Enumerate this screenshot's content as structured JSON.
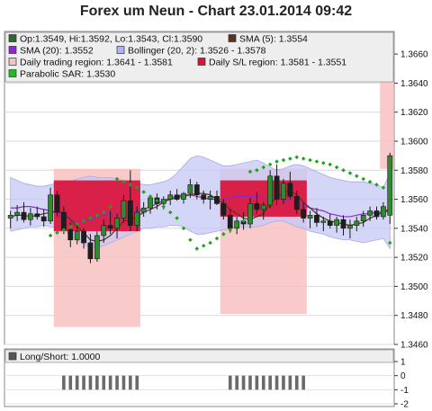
{
  "title": "Forex um Neun - Chart 23.01.2014 09:42",
  "legend_main": [
    {
      "label": "Op:1.3549, Hi:1.3592, Lo:1.3543, Cl:1.3590",
      "color": "#2a6a2a"
    },
    {
      "label": "SMA (5): 1.3554",
      "color": "#5a3418"
    },
    {
      "label": "SMA (20): 1.3552",
      "color": "#8a2ac8"
    },
    {
      "label": "Bollinger (20, 2): 1.3526 - 1.3578",
      "color": "#b0b4f0"
    },
    {
      "label": "Daily trading region: 1.3641 - 1.3581",
      "color": "#f2c6c6"
    },
    {
      "label": "Daily S/L region: 1.3581 - 1.3551",
      "color": "#dd1133"
    },
    {
      "label": "Parabolic SAR: 1.3530",
      "color": "#22bb22"
    }
  ],
  "legend_lower": [
    {
      "label": "Long/Short: 1.0000",
      "color": "#555555"
    }
  ],
  "chart_data": [
    {
      "type": "candlestick",
      "title": "Forex um Neun - Chart 23.01.2014 09:42",
      "ylim": [
        1.346,
        1.367
      ],
      "y_ticks": [
        "1.3660",
        "1.3640",
        "1.3620",
        "1.3600",
        "1.3580",
        "1.3560",
        "1.3540",
        "1.3520",
        "1.3500",
        "1.3480",
        "1.3460"
      ],
      "grid": true,
      "candles": [
        {
          "o": 1.3547,
          "h": 1.3552,
          "l": 1.354,
          "c": 1.3549
        },
        {
          "o": 1.3549,
          "h": 1.3556,
          "l": 1.3545,
          "c": 1.3551
        },
        {
          "o": 1.3551,
          "h": 1.3558,
          "l": 1.3544,
          "c": 1.3546
        },
        {
          "o": 1.3546,
          "h": 1.3554,
          "l": 1.3542,
          "c": 1.355
        },
        {
          "o": 1.355,
          "h": 1.3555,
          "l": 1.3546,
          "c": 1.3548
        },
        {
          "o": 1.3548,
          "h": 1.3553,
          "l": 1.3541,
          "c": 1.3545
        },
        {
          "o": 1.3545,
          "h": 1.3568,
          "l": 1.3543,
          "c": 1.3563
        },
        {
          "o": 1.3563,
          "h": 1.3566,
          "l": 1.3548,
          "c": 1.3551
        },
        {
          "o": 1.3551,
          "h": 1.3555,
          "l": 1.3536,
          "c": 1.3539
        },
        {
          "o": 1.3539,
          "h": 1.3544,
          "l": 1.3527,
          "c": 1.3532
        },
        {
          "o": 1.3532,
          "h": 1.3542,
          "l": 1.3529,
          "c": 1.3538
        },
        {
          "o": 1.3538,
          "h": 1.354,
          "l": 1.3526,
          "c": 1.353
        },
        {
          "o": 1.353,
          "h": 1.3536,
          "l": 1.3516,
          "c": 1.3519
        },
        {
          "o": 1.3519,
          "h": 1.3538,
          "l": 1.3517,
          "c": 1.3535
        },
        {
          "o": 1.3535,
          "h": 1.3546,
          "l": 1.353,
          "c": 1.3542
        },
        {
          "o": 1.3542,
          "h": 1.3552,
          "l": 1.3536,
          "c": 1.354
        },
        {
          "o": 1.354,
          "h": 1.355,
          "l": 1.3533,
          "c": 1.3547
        },
        {
          "o": 1.3547,
          "h": 1.3563,
          "l": 1.3544,
          "c": 1.3559
        },
        {
          "o": 1.3559,
          "h": 1.358,
          "l": 1.3538,
          "c": 1.3542
        },
        {
          "o": 1.3542,
          "h": 1.3555,
          "l": 1.3538,
          "c": 1.3551
        },
        {
          "o": 1.3551,
          "h": 1.3558,
          "l": 1.3548,
          "c": 1.3554
        },
        {
          "o": 1.3554,
          "h": 1.3563,
          "l": 1.355,
          "c": 1.3561
        },
        {
          "o": 1.3561,
          "h": 1.3564,
          "l": 1.3553,
          "c": 1.3557
        },
        {
          "o": 1.3557,
          "h": 1.3562,
          "l": 1.3553,
          "c": 1.356
        },
        {
          "o": 1.356,
          "h": 1.3566,
          "l": 1.3556,
          "c": 1.3563
        },
        {
          "o": 1.3563,
          "h": 1.3567,
          "l": 1.3559,
          "c": 1.356
        },
        {
          "o": 1.356,
          "h": 1.3565,
          "l": 1.3557,
          "c": 1.3564
        },
        {
          "o": 1.3564,
          "h": 1.3574,
          "l": 1.3561,
          "c": 1.357
        },
        {
          "o": 1.357,
          "h": 1.3572,
          "l": 1.356,
          "c": 1.3563
        },
        {
          "o": 1.3563,
          "h": 1.3566,
          "l": 1.3557,
          "c": 1.356
        },
        {
          "o": 1.356,
          "h": 1.3566,
          "l": 1.3553,
          "c": 1.3562
        },
        {
          "o": 1.3562,
          "h": 1.3566,
          "l": 1.3556,
          "c": 1.3557
        },
        {
          "o": 1.3557,
          "h": 1.356,
          "l": 1.3546,
          "c": 1.3549
        },
        {
          "o": 1.3549,
          "h": 1.3553,
          "l": 1.3537,
          "c": 1.354
        },
        {
          "o": 1.354,
          "h": 1.3548,
          "l": 1.3536,
          "c": 1.3545
        },
        {
          "o": 1.3545,
          "h": 1.3551,
          "l": 1.3539,
          "c": 1.3543
        },
        {
          "o": 1.3543,
          "h": 1.3561,
          "l": 1.354,
          "c": 1.3557
        },
        {
          "o": 1.3557,
          "h": 1.3565,
          "l": 1.355,
          "c": 1.3553
        },
        {
          "o": 1.3553,
          "h": 1.3558,
          "l": 1.3546,
          "c": 1.3556
        },
        {
          "o": 1.3556,
          "h": 1.358,
          "l": 1.3554,
          "c": 1.3576
        },
        {
          "o": 1.3576,
          "h": 1.3584,
          "l": 1.3556,
          "c": 1.356
        },
        {
          "o": 1.356,
          "h": 1.3574,
          "l": 1.3557,
          "c": 1.3571
        },
        {
          "o": 1.3571,
          "h": 1.3579,
          "l": 1.356,
          "c": 1.3562
        },
        {
          "o": 1.3562,
          "h": 1.3566,
          "l": 1.355,
          "c": 1.3553
        },
        {
          "o": 1.3553,
          "h": 1.3558,
          "l": 1.3544,
          "c": 1.3547
        },
        {
          "o": 1.3547,
          "h": 1.3552,
          "l": 1.354,
          "c": 1.3549
        },
        {
          "o": 1.3549,
          "h": 1.3554,
          "l": 1.3541,
          "c": 1.3544
        },
        {
          "o": 1.3544,
          "h": 1.3548,
          "l": 1.3538,
          "c": 1.3545
        },
        {
          "o": 1.3545,
          "h": 1.355,
          "l": 1.354,
          "c": 1.3542
        },
        {
          "o": 1.3542,
          "h": 1.3548,
          "l": 1.3537,
          "c": 1.3546
        },
        {
          "o": 1.3546,
          "h": 1.3549,
          "l": 1.3535,
          "c": 1.354
        },
        {
          "o": 1.354,
          "h": 1.3546,
          "l": 1.3533,
          "c": 1.3542
        },
        {
          "o": 1.3542,
          "h": 1.3548,
          "l": 1.3538,
          "c": 1.3545
        },
        {
          "o": 1.3545,
          "h": 1.3552,
          "l": 1.3541,
          "c": 1.3549
        },
        {
          "o": 1.3549,
          "h": 1.3555,
          "l": 1.3545,
          "c": 1.3552
        },
        {
          "o": 1.3552,
          "h": 1.3555,
          "l": 1.3546,
          "c": 1.3548
        },
        {
          "o": 1.3548,
          "h": 1.3558,
          "l": 1.3546,
          "c": 1.3555
        },
        {
          "o": 1.3549,
          "h": 1.3592,
          "l": 1.3543,
          "c": 1.359
        }
      ],
      "bollinger_upper": [
        1.3575,
        1.3573,
        1.3571,
        1.357,
        1.3569,
        1.3569,
        1.357,
        1.3571,
        1.3571,
        1.3572,
        1.3574,
        1.3575,
        1.3576,
        1.3575,
        1.3575,
        1.3575,
        1.3574,
        1.3573,
        1.3572,
        1.3571,
        1.357,
        1.357,
        1.3571,
        1.3572,
        1.3574,
        1.3578,
        1.3583,
        1.3588,
        1.359,
        1.3589,
        1.3587,
        1.3585,
        1.3583,
        1.3583,
        1.3584,
        1.3585,
        1.3586,
        1.3587,
        1.3585,
        1.3582,
        1.358,
        1.3581,
        1.3583,
        1.3584,
        1.3583,
        1.3581,
        1.3579,
        1.3577,
        1.3575,
        1.3574,
        1.3573,
        1.3572,
        1.3572,
        1.3572,
        1.3571,
        1.357,
        1.3568,
        1.3578
      ],
      "bollinger_lower": [
        1.3538,
        1.3539,
        1.354,
        1.3541,
        1.3541,
        1.3542,
        1.3541,
        1.3541,
        1.3539,
        1.3535,
        1.3532,
        1.3529,
        1.3527,
        1.3527,
        1.3528,
        1.353,
        1.3532,
        1.3534,
        1.3536,
        1.3538,
        1.354,
        1.354,
        1.3541,
        1.3541,
        1.3542,
        1.3542,
        1.3541,
        1.3538,
        1.3536,
        1.3536,
        1.3537,
        1.3538,
        1.3539,
        1.354,
        1.3541,
        1.3541,
        1.3541,
        1.3541,
        1.3542,
        1.3544,
        1.3545,
        1.3545,
        1.3543,
        1.3541,
        1.354,
        1.3538,
        1.3537,
        1.3536,
        1.3534,
        1.3533,
        1.3532,
        1.3532,
        1.3531,
        1.353,
        1.3531,
        1.3532,
        1.3533,
        1.3526
      ],
      "sma20": [
        1.3554,
        1.3554,
        1.3555,
        1.3555,
        1.3554,
        1.3553,
        1.3552,
        1.355,
        1.3548,
        1.3546,
        1.3545,
        1.3545,
        1.3546,
        1.3548,
        1.3549,
        1.355,
        1.355,
        1.355,
        1.3551,
        1.3552,
        1.3553,
        1.3555,
        1.3557,
        1.3559,
        1.3561,
        1.3562,
        1.3563,
        1.3563,
        1.3562,
        1.3561,
        1.356,
        1.356,
        1.356,
        1.3561,
        1.3562,
        1.3562,
        1.3562,
        1.3562,
        1.3561,
        1.3561,
        1.356,
        1.356,
        1.3559,
        1.3558,
        1.3556,
        1.3554,
        1.3553,
        1.3552,
        1.355,
        1.3549,
        1.3548,
        1.3548,
        1.3549,
        1.355,
        1.355,
        1.3551,
        1.3551,
        1.3552
      ],
      "sma5": [
        1.3548,
        1.3549,
        1.3549,
        1.3548,
        1.3549,
        1.355,
        1.3551,
        1.3552,
        1.355,
        1.3546,
        1.3541,
        1.3537,
        1.3532,
        1.3531,
        1.3532,
        1.3535,
        1.354,
        1.3545,
        1.3546,
        1.3548,
        1.3551,
        1.3553,
        1.3555,
        1.3558,
        1.356,
        1.3561,
        1.3562,
        1.3563,
        1.3564,
        1.3564,
        1.3563,
        1.356,
        1.3557,
        1.3553,
        1.355,
        1.3547,
        1.3546,
        1.3548,
        1.355,
        1.3557,
        1.3561,
        1.3565,
        1.3566,
        1.3563,
        1.3558,
        1.3554,
        1.355,
        1.3547,
        1.3545,
        1.3544,
        1.3543,
        1.3542,
        1.3543,
        1.3544,
        1.3547,
        1.3549,
        1.3551,
        1.3554
      ],
      "parabolic_sar": [
        null,
        null,
        null,
        null,
        null,
        null,
        1.3535,
        1.3537,
        1.3539,
        1.3541,
        1.3543,
        1.3545,
        1.3547,
        1.3549,
        1.3551,
        1.3555,
        1.3574,
        1.3572,
        1.357,
        1.3568,
        1.3565,
        1.3562,
        1.3559,
        1.3555,
        1.3551,
        1.3547,
        1.354,
        1.3532,
        1.3526,
        1.3528,
        1.353,
        1.3533,
        1.3536,
        1.3539,
        1.3542,
        1.3545,
        1.3579,
        1.358,
        1.3582,
        1.3584,
        1.3586,
        1.3587,
        1.3588,
        1.3589,
        1.3588,
        1.3587,
        1.3586,
        1.3585,
        1.3584,
        1.3582,
        1.358,
        1.3578,
        1.3576,
        1.3574,
        1.3572,
        1.357,
        1.3568,
        1.353
      ],
      "daily_trading_region": [
        {
          "start_index": 7,
          "end_index": 19,
          "from": 1.3581,
          "to": 1.3472
        },
        {
          "start_index": 32,
          "end_index": 44,
          "from": 1.3581,
          "to": 1.3481
        },
        {
          "start_index": 56,
          "end_index": 57,
          "from": 1.3641,
          "to": 1.3581
        }
      ],
      "daily_sl_region": [
        {
          "start_index": 7,
          "end_index": 19,
          "from": 1.3573,
          "to": 1.3538
        },
        {
          "start_index": 32,
          "end_index": 44,
          "from": 1.3573,
          "to": 1.3548
        }
      ]
    },
    {
      "type": "bar",
      "title": "Long/Short",
      "ylim": [
        -2,
        1
      ],
      "y_ticks": [
        "1",
        "0",
        "-1",
        "-2"
      ],
      "bars": [
        {
          "start_index": 8,
          "end_index": 19,
          "value": -1
        },
        {
          "start_index": 33,
          "end_index": 44,
          "value": -1
        }
      ]
    }
  ]
}
